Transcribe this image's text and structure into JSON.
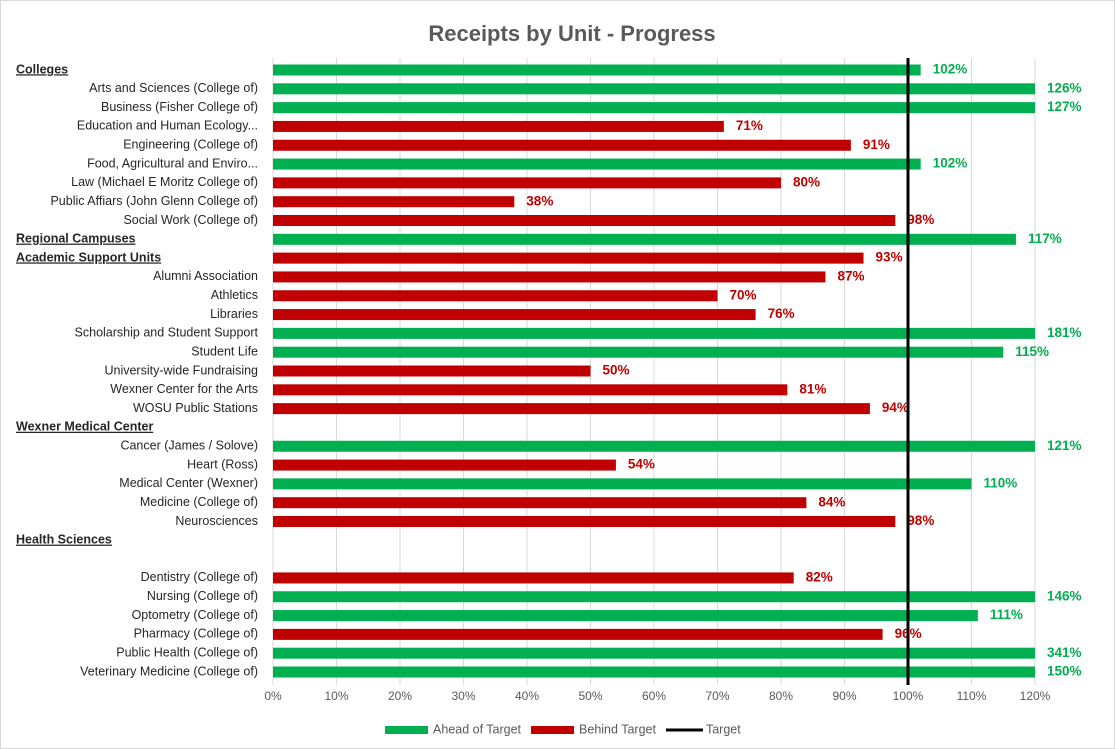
{
  "chart_data": {
    "type": "bar",
    "orientation": "horizontal",
    "title": "Receipts by Unit - Progress",
    "categories": [
      "Colleges",
      "Arts and Sciences (College of)",
      "Business (Fisher College of)",
      "Education and Human Ecology...",
      "Engineering (College of)",
      "Food, Agricultural and Enviro...",
      "Law (Michael E Moritz College of)",
      "Public Affiars (John Glenn College of)",
      "Social Work (College of)",
      "Regional Campuses",
      "Academic Support Units",
      "Alumni Association",
      "Athletics",
      "Libraries",
      "Scholarship and Student Support",
      "Student Life",
      "University-wide Fundraising",
      "Wexner Center for the Arts",
      "WOSU Public Stations",
      "Wexner Medical Center",
      "Cancer (James / Solove)",
      "Heart (Ross)",
      "Medical Center (Wexner)",
      "Medicine (College of)",
      "Neurosciences",
      "Health Sciences",
      null,
      "Dentistry (College of)",
      "Nursing (College of)",
      "Optometry (College of)",
      "Pharmacy (College of)",
      "Public Health (College of)",
      "Veterinary Medicine (College of)"
    ],
    "header_indices": [
      0,
      9,
      10,
      19,
      25
    ],
    "series": [
      {
        "name": "Ahead of Target",
        "color": "#00b050",
        "values": [
          102,
          126,
          127,
          null,
          null,
          102,
          null,
          null,
          null,
          117,
          null,
          null,
          null,
          null,
          181,
          115,
          null,
          null,
          null,
          null,
          121,
          null,
          110,
          null,
          null,
          null,
          null,
          null,
          146,
          111,
          null,
          341,
          150
        ],
        "value_labels": [
          "102%",
          "126%",
          "127%",
          null,
          null,
          "102%",
          null,
          null,
          null,
          "117%",
          null,
          null,
          null,
          null,
          "181%",
          "115%",
          null,
          null,
          null,
          null,
          "121%",
          null,
          "110%",
          null,
          null,
          null,
          null,
          null,
          "146%",
          "111%",
          null,
          "341%",
          "150%"
        ]
      },
      {
        "name": "Behind Target",
        "color": "#c00000",
        "values": [
          null,
          null,
          null,
          71,
          91,
          null,
          80,
          38,
          98,
          null,
          93,
          87,
          70,
          76,
          null,
          null,
          50,
          81,
          94,
          null,
          null,
          54,
          null,
          84,
          98,
          null,
          null,
          82,
          null,
          null,
          96,
          null,
          null
        ],
        "value_labels": [
          null,
          null,
          null,
          "71%",
          "91%",
          null,
          "80%",
          "38%",
          "98%",
          null,
          "93%",
          "87%",
          "70%",
          "76%",
          null,
          null,
          "50%",
          "81%",
          "94%",
          null,
          null,
          "54%",
          null,
          "84%",
          "98%",
          null,
          null,
          "82%",
          null,
          null,
          "96%",
          null,
          null
        ]
      }
    ],
    "target": {
      "name": "Target",
      "value": 100,
      "color": "#000000"
    },
    "xlim": [
      0,
      120
    ],
    "xticks": [
      {
        "value": 0,
        "label": "0%"
      },
      {
        "value": 10,
        "label": "10%"
      },
      {
        "value": 20,
        "label": "20%"
      },
      {
        "value": 30,
        "label": "30%"
      },
      {
        "value": 40,
        "label": "40%"
      },
      {
        "value": 50,
        "label": "50%"
      },
      {
        "value": 60,
        "label": "60%"
      },
      {
        "value": 70,
        "label": "70%"
      },
      {
        "value": 80,
        "label": "80%"
      },
      {
        "value": 90,
        "label": "90%"
      },
      {
        "value": 100,
        "label": "100%"
      },
      {
        "value": 110,
        "label": "110%"
      },
      {
        "value": 120,
        "label": "120%"
      }
    ],
    "grid": true,
    "legend": "bottom"
  }
}
